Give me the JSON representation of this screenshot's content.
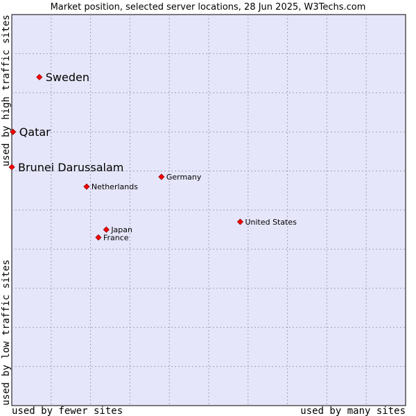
{
  "chart_data": {
    "type": "scatter",
    "title": "Market position, selected server locations, 28 Jun 2025, W3Techs.com",
    "xlabel_left": "used by fewer sites",
    "xlabel_right": "used by many sites",
    "ylabel_bottom": "used by low traffic sites",
    "ylabel_top": "used by high traffic sites",
    "xlim": [
      0,
      1
    ],
    "ylim": [
      0,
      1
    ],
    "grid": true,
    "marker_color": "#ff0000",
    "plot_background": "#e6e6fa",
    "points": [
      {
        "label": "Sweden",
        "x": 0.07,
        "y": 0.84,
        "size": "large"
      },
      {
        "label": "Qatar",
        "x": 0.003,
        "y": 0.7,
        "size": "large"
      },
      {
        "label": "Brunei Darussalam",
        "x": 0.0,
        "y": 0.61,
        "size": "large"
      },
      {
        "label": "Germany",
        "x": 0.38,
        "y": 0.585,
        "size": "small"
      },
      {
        "label": "Netherlands",
        "x": 0.19,
        "y": 0.56,
        "size": "small"
      },
      {
        "label": "United States",
        "x": 0.58,
        "y": 0.47,
        "size": "small"
      },
      {
        "label": "Japan",
        "x": 0.24,
        "y": 0.45,
        "size": "small"
      },
      {
        "label": "France",
        "x": 0.22,
        "y": 0.43,
        "size": "small"
      }
    ]
  }
}
